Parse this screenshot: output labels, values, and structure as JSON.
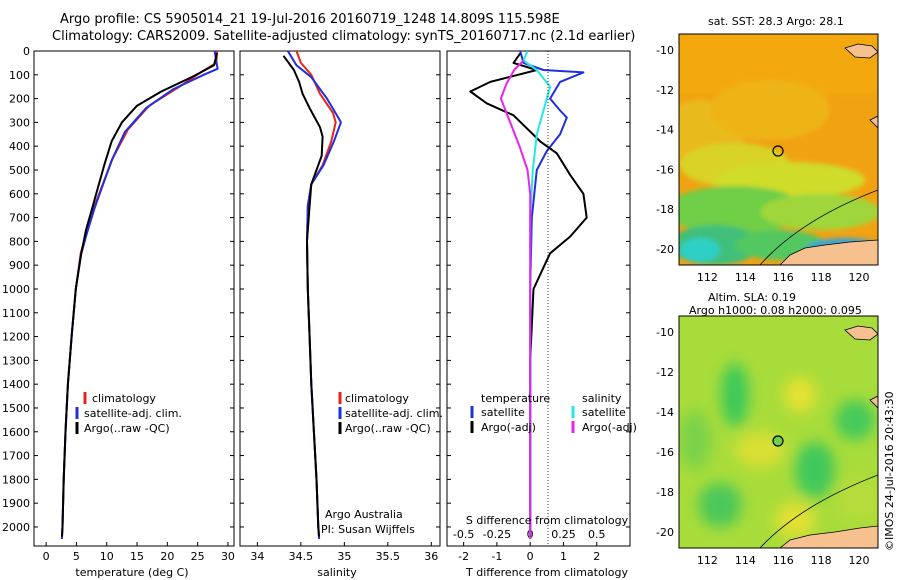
{
  "title_line1": "Argo profile: CS 5905014_21 19-Jul-2016 20160719_1248 14.809S 115.598E",
  "title_line2": "Climatology: CARS2009. Satellite-adjusted climatology: synTS_20160717.nc (2.1d earlier)",
  "credit": "©IMOS 24-Jul-2016 20:43:30",
  "colors": {
    "climatology": "#e8231a",
    "satellite": "#1f2fe0",
    "argo": "#000000",
    "satellite_S": "#22e8e8",
    "argo_S": "#ee22ee"
  },
  "chart_data": [
    {
      "type": "line",
      "name": "temperature",
      "xlabel": "temperature (deg C)",
      "ylabel": "",
      "xlim": [
        -2,
        31
      ],
      "ylim": [
        2080,
        0
      ],
      "xticks": [
        0,
        5,
        10,
        15,
        20,
        25,
        30
      ],
      "yticks": [
        0,
        100,
        200,
        300,
        400,
        500,
        600,
        700,
        800,
        900,
        1000,
        1100,
        1200,
        1300,
        1400,
        1500,
        1600,
        1700,
        1800,
        1900,
        2000
      ],
      "legend": [
        "climatology",
        "satellite-adj. clim.",
        "Argo(..raw -QC)"
      ],
      "series": [
        {
          "name": "climatology",
          "color": "#e8231a",
          "points": [
            [
              28.2,
              0
            ],
            [
              28.1,
              50
            ],
            [
              25.5,
              90
            ],
            [
              22,
              150
            ],
            [
              17,
              230
            ],
            [
              13.5,
              330
            ],
            [
              11,
              450
            ],
            [
              9.5,
              550
            ],
            [
              8,
              650
            ],
            [
              6.8,
              750
            ],
            [
              5.7,
              850
            ],
            [
              4.9,
              1000
            ],
            [
              4.2,
              1200
            ],
            [
              3.6,
              1400
            ],
            [
              3.2,
              1600
            ],
            [
              2.9,
              1800
            ],
            [
              2.7,
              2000
            ],
            [
              2.6,
              2050
            ]
          ]
        },
        {
          "name": "satellite-adj. clim.",
          "color": "#1f2fe0",
          "points": [
            [
              27.8,
              0
            ],
            [
              28.3,
              75
            ],
            [
              26,
              100
            ],
            [
              21,
              160
            ],
            [
              16.5,
              240
            ],
            [
              13,
              340
            ],
            [
              10.8,
              460
            ],
            [
              9.4,
              560
            ],
            [
              8,
              660
            ],
            [
              6.8,
              760
            ],
            [
              5.7,
              860
            ],
            [
              4.9,
              1000
            ],
            [
              4.2,
              1200
            ],
            [
              3.6,
              1400
            ],
            [
              3.2,
              1600
            ],
            [
              2.9,
              1800
            ],
            [
              2.7,
              2000
            ],
            [
              2.6,
              2050
            ]
          ]
        },
        {
          "name": "Argo(..raw -QC)",
          "color": "#000000",
          "points": [
            [
              28.2,
              8
            ],
            [
              27.7,
              60
            ],
            [
              24,
              110
            ],
            [
              19,
              170
            ],
            [
              15,
              230
            ],
            [
              12.5,
              300
            ],
            [
              10.8,
              380
            ],
            [
              9.7,
              470
            ],
            [
              8.6,
              570
            ],
            [
              7.5,
              670
            ],
            [
              6.6,
              750
            ],
            [
              5.8,
              850
            ],
            [
              4.9,
              1000
            ],
            [
              4.2,
              1200
            ],
            [
              3.6,
              1400
            ],
            [
              3.2,
              1600
            ],
            [
              2.9,
              1800
            ],
            [
              2.7,
              2000
            ],
            [
              2.6,
              2040
            ]
          ]
        }
      ]
    },
    {
      "type": "line",
      "name": "salinity",
      "xlabel": "salinity",
      "ylabel": "",
      "xlim": [
        33.8,
        36.1
      ],
      "ylim": [
        2080,
        0
      ],
      "xticks": [
        34,
        34.5,
        35,
        35.5,
        36
      ],
      "xtick_labels": [
        "34",
        "34.5",
        "35",
        "35.5",
        "36"
      ],
      "legend": [
        "climatology",
        "satellite-adj. clim.",
        "Argo(..raw -QC)"
      ],
      "annotation": [
        "Argo Australia",
        "PI: Susan Wijffels"
      ],
      "series": [
        {
          "name": "climatology",
          "color": "#e8231a",
          "points": [
            [
              34.45,
              0
            ],
            [
              34.5,
              50
            ],
            [
              34.62,
              100
            ],
            [
              34.72,
              180
            ],
            [
              34.87,
              260
            ],
            [
              34.9,
              300
            ],
            [
              34.85,
              380
            ],
            [
              34.75,
              480
            ],
            [
              34.62,
              560
            ],
            [
              34.58,
              650
            ],
            [
              34.57,
              800
            ],
            [
              34.58,
              1000
            ],
            [
              34.6,
              1200
            ],
            [
              34.62,
              1400
            ],
            [
              34.65,
              1600
            ],
            [
              34.68,
              1800
            ],
            [
              34.7,
              2000
            ],
            [
              34.71,
              2050
            ]
          ]
        },
        {
          "name": "satellite-adj. clim.",
          "color": "#1f2fe0",
          "points": [
            [
              34.35,
              0
            ],
            [
              34.45,
              60
            ],
            [
              34.62,
              110
            ],
            [
              34.8,
              200
            ],
            [
              34.93,
              280
            ],
            [
              34.96,
              300
            ],
            [
              34.88,
              380
            ],
            [
              34.76,
              480
            ],
            [
              34.62,
              560
            ],
            [
              34.58,
              650
            ],
            [
              34.57,
              800
            ],
            [
              34.58,
              1000
            ],
            [
              34.6,
              1200
            ],
            [
              34.62,
              1400
            ],
            [
              34.65,
              1600
            ],
            [
              34.68,
              1800
            ],
            [
              34.7,
              2000
            ],
            [
              34.71,
              2050
            ]
          ]
        },
        {
          "name": "Argo(..raw -QC)",
          "color": "#000000",
          "points": [
            [
              34.3,
              20
            ],
            [
              34.42,
              80
            ],
            [
              34.48,
              130
            ],
            [
              34.52,
              180
            ],
            [
              34.6,
              240
            ],
            [
              34.72,
              320
            ],
            [
              34.75,
              360
            ],
            [
              34.74,
              440
            ],
            [
              34.68,
              500
            ],
            [
              34.62,
              560
            ],
            [
              34.6,
              650
            ],
            [
              34.57,
              800
            ],
            [
              34.58,
              1000
            ],
            [
              34.6,
              1200
            ],
            [
              34.62,
              1400
            ],
            [
              34.65,
              1600
            ],
            [
              34.68,
              1800
            ],
            [
              34.7,
              2000
            ],
            [
              34.71,
              2040
            ]
          ]
        }
      ]
    },
    {
      "type": "line",
      "name": "differences",
      "xlabel": "T difference from climatology",
      "xlabel_top": "S difference from climatology",
      "xlim": [
        -2.5,
        3
      ],
      "ylim": [
        2080,
        0
      ],
      "xticks": [
        -2,
        -1,
        0,
        1,
        2
      ],
      "xtick_labels": [
        "-2",
        "-1",
        "0",
        "1",
        "2"
      ],
      "s_ticks": [
        -0.5,
        -0.25,
        0,
        0.25,
        0.5
      ],
      "s_tick_labels": [
        "-0.5",
        "-0.25",
        "0",
        "0.25",
        "0.5"
      ],
      "legend_headers": [
        "temperature",
        "salinity"
      ],
      "legend": [
        "satellite",
        "Argo(-adj)",
        "satellite",
        "Argo(-adj)"
      ],
      "series": [
        {
          "name": "satellite",
          "quantity": "temperature",
          "color": "#1f2fe0",
          "points": [
            [
              -0.3,
              0
            ],
            [
              -0.2,
              50
            ],
            [
              0.4,
              80
            ],
            [
              1.6,
              90
            ],
            [
              0.9,
              130
            ],
            [
              0.6,
              200
            ],
            [
              0.9,
              250
            ],
            [
              1.1,
              280
            ],
            [
              0.9,
              350
            ],
            [
              0.5,
              420
            ],
            [
              0.2,
              500
            ],
            [
              0.05,
              700
            ],
            [
              0,
              1000
            ],
            [
              0,
              1500
            ],
            [
              0,
              2050
            ]
          ]
        },
        {
          "name": "Argo(-adj)",
          "quantity": "temperature",
          "color": "#000000",
          "points": [
            [
              -0.3,
              10
            ],
            [
              -0.5,
              50
            ],
            [
              0.2,
              80
            ],
            [
              -1.2,
              130
            ],
            [
              -1.8,
              170
            ],
            [
              -1.3,
              220
            ],
            [
              -0.5,
              270
            ],
            [
              0.3,
              380
            ],
            [
              0.8,
              430
            ],
            [
              1.2,
              520
            ],
            [
              1.6,
              600
            ],
            [
              1.7,
              700
            ],
            [
              1.2,
              780
            ],
            [
              0.6,
              850
            ],
            [
              0.1,
              1000
            ],
            [
              0,
              1300
            ],
            [
              0,
              2050
            ]
          ]
        },
        {
          "name": "satellite",
          "quantity": "salinity",
          "color": "#22e8e8",
          "points": [
            [
              -0.02,
              0
            ],
            [
              -0.05,
              40
            ],
            [
              0.05,
              80
            ],
            [
              0.15,
              150
            ],
            [
              0.1,
              250
            ],
            [
              0.05,
              350
            ],
            [
              0.02,
              500
            ],
            [
              0,
              700
            ],
            [
              0,
              2050
            ]
          ]
        },
        {
          "name": "Argo(-adj)",
          "quantity": "salinity",
          "color": "#ee22ee",
          "points": [
            [
              -0.05,
              40
            ],
            [
              -0.12,
              80
            ],
            [
              -0.18,
              140
            ],
            [
              -0.22,
              200
            ],
            [
              -0.15,
              300
            ],
            [
              -0.08,
              400
            ],
            [
              -0.02,
              500
            ],
            [
              0,
              600
            ],
            [
              0,
              2050
            ]
          ]
        }
      ]
    },
    {
      "type": "heatmap",
      "name": "sst_map",
      "title": "sat. SST: 28.3  Argo: 28.1",
      "xlim": [
        110.5,
        121
      ],
      "ylim": [
        -20.8,
        -9.2
      ],
      "xticks": [
        112,
        114,
        116,
        118,
        120
      ],
      "yticks": [
        -10,
        -12,
        -14,
        -16,
        -18,
        -20
      ],
      "argo_position": [
        115.598,
        -14.809
      ]
    },
    {
      "type": "heatmap",
      "name": "sla_map",
      "title_line1": "Altim. SLA: 0.19",
      "title_line2": "Argo h1000: 0.08 h2000: 0.095",
      "xlim": [
        110.5,
        121
      ],
      "ylim": [
        -20.8,
        -9.2
      ],
      "xticks": [
        112,
        114,
        116,
        118,
        120
      ],
      "yticks": [
        -10,
        -12,
        -14,
        -16,
        -18,
        -20
      ],
      "argo_position": [
        115.598,
        -14.809
      ]
    }
  ]
}
